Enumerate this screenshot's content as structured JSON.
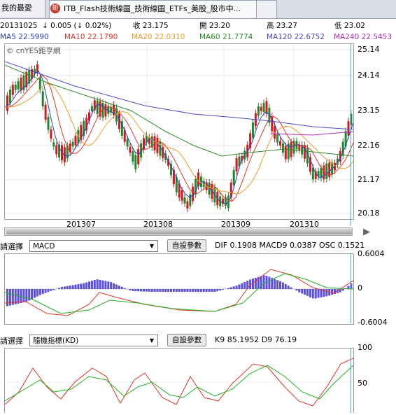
{
  "tabs": [
    {
      "label": "我的最愛"
    },
    {
      "label": "ITB_Flash技術線圖_技術線圖_ETFs_美股_股市中..."
    },
    {
      "label": ""
    }
  ],
  "tab_icon_text": "鉅",
  "quote": {
    "date": "20131025",
    "change": "↓ 0.005 (↓ 0.02%)",
    "close": "收 23.175",
    "open": "開 23.20",
    "high": "高 23.27",
    "low": "低 23.02"
  },
  "ma": [
    {
      "label": "MA5 22.5990",
      "color": "#2a3fc4"
    },
    {
      "label": "MA10 22.1790",
      "color": "#e0342a"
    },
    {
      "label": "MA20 22.0310",
      "color": "#ee9a28"
    },
    {
      "label": "MA60 21.7774",
      "color": "#2e8b2e"
    },
    {
      "label": "MA120 22.6752",
      "color": "#4b4bc8"
    },
    {
      "label": "MA240 22.5453",
      "color": "#b02fb0"
    }
  ],
  "watermark": "© cnYES鉅亨網",
  "price_axis": [
    "25.14",
    "24.14",
    "23.15",
    "22.16",
    "21.17",
    "20.18"
  ],
  "date_axis": [
    "201307",
    "201308",
    "201309",
    "201310"
  ],
  "indicator1": {
    "select_label": "請選擇",
    "select_value": "MACD",
    "button": "自設參數",
    "readout": "DIF 0.1908    MACD9 0.0387    OSC 0.1521",
    "axis": [
      "0.6004",
      "0",
      "-0.6004"
    ]
  },
  "indicator2": {
    "select_label": "請選擇",
    "select_value": "隨機指標(KD)",
    "button": "自設參數",
    "readout": "K9 85.1952    D9 76.19",
    "axis": [
      "100",
      "50"
    ]
  },
  "colors": {
    "up": "#d6191e",
    "down": "#1d8a2f",
    "osc": "#5a4fe0"
  }
}
